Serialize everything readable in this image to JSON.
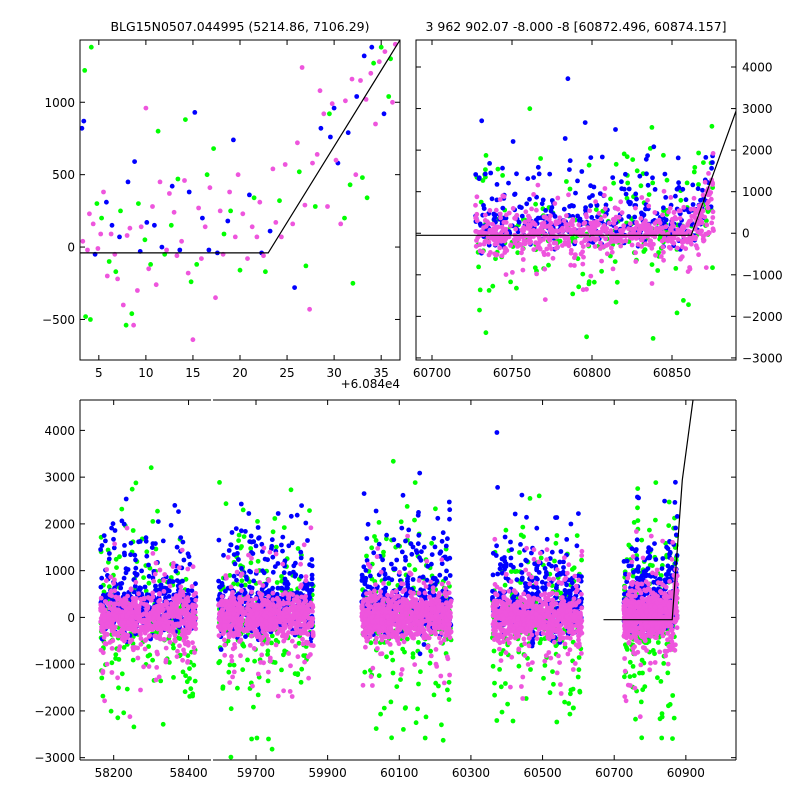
{
  "figure": {
    "background": "#ffffff",
    "point_colors": {
      "green": "#00ff00",
      "blue": "#0000ff",
      "magenta": "#ee55dd"
    },
    "model_line_color": "#000000"
  },
  "chart_data": [
    {
      "id": "top_left",
      "type": "scatter",
      "title": "BLG15N0507.044995 (5214.86, 7106.29)",
      "xlabel": "",
      "ylabel": "",
      "x_offset_label": "+6.084e4",
      "xlim": [
        3,
        37
      ],
      "ylim": [
        -780,
        1430
      ],
      "xticks": [
        5,
        10,
        15,
        20,
        25,
        30,
        35
      ],
      "yticks": [
        -500,
        0,
        500,
        1000
      ],
      "ytick_side": "left",
      "model_line": {
        "x": [
          3,
          23,
          37
        ],
        "y": [
          -40,
          -40,
          1430
        ]
      },
      "series": [
        {
          "color": "green",
          "points": [
            [
              3.5,
              1220
            ],
            [
              4.2,
              1380
            ],
            [
              3.6,
              -480
            ],
            [
              4.1,
              -500
            ],
            [
              4.8,
              300
            ],
            [
              5.3,
              200
            ],
            [
              6.1,
              -100
            ],
            [
              6.8,
              -170
            ],
            [
              7.3,
              250
            ],
            [
              7.9,
              -540
            ],
            [
              8.5,
              -460
            ],
            [
              9.2,
              300
            ],
            [
              9.9,
              50
            ],
            [
              10.5,
              -120
            ],
            [
              11.3,
              800
            ],
            [
              12.0,
              -50
            ],
            [
              12.7,
              150
            ],
            [
              13.4,
              470
            ],
            [
              14.2,
              880
            ],
            [
              14.8,
              -240
            ],
            [
              15.4,
              -120
            ],
            [
              16.5,
              500
            ],
            [
              17.2,
              680
            ],
            [
              18.3,
              90
            ],
            [
              19.0,
              250
            ],
            [
              20.0,
              -160
            ],
            [
              21.5,
              340
            ],
            [
              22.7,
              -170
            ],
            [
              24.2,
              320
            ],
            [
              26.3,
              520
            ],
            [
              27.0,
              -130
            ],
            [
              28.0,
              280
            ],
            [
              29.5,
              920
            ],
            [
              31.1,
              200
            ],
            [
              31.7,
              430
            ],
            [
              33.0,
              480
            ],
            [
              33.5,
              340
            ],
            [
              35.8,
              1040
            ],
            [
              34.2,
              1270
            ],
            [
              35.0,
              1380
            ],
            [
              36.0,
              1300
            ],
            [
              32.0,
              -250
            ]
          ]
        },
        {
          "color": "blue",
          "points": [
            [
              3.2,
              820
            ],
            [
              3.4,
              870
            ],
            [
              4.6,
              -50
            ],
            [
              5.8,
              310
            ],
            [
              6.4,
              150
            ],
            [
              7.2,
              70
            ],
            [
              8.1,
              450
            ],
            [
              8.8,
              590
            ],
            [
              9.4,
              -30
            ],
            [
              10.1,
              170
            ],
            [
              10.9,
              150
            ],
            [
              11.7,
              0
            ],
            [
              12.8,
              420
            ],
            [
              13.6,
              -20
            ],
            [
              14.6,
              380
            ],
            [
              15.2,
              930
            ],
            [
              16.0,
              200
            ],
            [
              16.7,
              -20
            ],
            [
              17.6,
              -40
            ],
            [
              18.7,
              180
            ],
            [
              19.3,
              740
            ],
            [
              21.0,
              360
            ],
            [
              22.3,
              -40
            ],
            [
              23.2,
              110
            ],
            [
              25.8,
              -280
            ],
            [
              28.6,
              820
            ],
            [
              29.6,
              760
            ],
            [
              30.4,
              580
            ],
            [
              31.5,
              790
            ],
            [
              32.4,
              1040
            ],
            [
              33.2,
              1320
            ],
            [
              34.0,
              1380
            ],
            [
              35.3,
              920
            ],
            [
              30.0,
              960
            ]
          ]
        },
        {
          "color": "magenta",
          "points": [
            [
              3.3,
              40
            ],
            [
              3.8,
              -20
            ],
            [
              4.0,
              230
            ],
            [
              4.4,
              160
            ],
            [
              4.9,
              -10
            ],
            [
              5.2,
              90
            ],
            [
              5.5,
              380
            ],
            [
              5.9,
              -200
            ],
            [
              6.3,
              90
            ],
            [
              6.7,
              -50
            ],
            [
              7.0,
              -220
            ],
            [
              7.6,
              -400
            ],
            [
              8.0,
              80
            ],
            [
              8.3,
              130
            ],
            [
              8.7,
              -540
            ],
            [
              9.1,
              -300
            ],
            [
              9.5,
              140
            ],
            [
              10.0,
              960
            ],
            [
              10.3,
              -150
            ],
            [
              10.7,
              280
            ],
            [
              11.1,
              -260
            ],
            [
              11.5,
              450
            ],
            [
              12.2,
              -20
            ],
            [
              12.5,
              370
            ],
            [
              13.0,
              240
            ],
            [
              13.3,
              -60
            ],
            [
              13.8,
              40
            ],
            [
              14.1,
              460
            ],
            [
              14.5,
              -180
            ],
            [
              15.0,
              -640
            ],
            [
              15.6,
              270
            ],
            [
              15.9,
              -80
            ],
            [
              16.3,
              140
            ],
            [
              16.8,
              410
            ],
            [
              17.4,
              -350
            ],
            [
              17.9,
              250
            ],
            [
              18.2,
              -50
            ],
            [
              18.9,
              380
            ],
            [
              19.5,
              70
            ],
            [
              19.8,
              500
            ],
            [
              20.3,
              230
            ],
            [
              20.8,
              -80
            ],
            [
              21.3,
              140
            ],
            [
              21.8,
              70
            ],
            [
              22.1,
              310
            ],
            [
              22.5,
              -60
            ],
            [
              23.5,
              540
            ],
            [
              23.8,
              170
            ],
            [
              24.4,
              70
            ],
            [
              24.8,
              570
            ],
            [
              25.2,
              1440
            ],
            [
              25.6,
              160
            ],
            [
              26.1,
              720
            ],
            [
              26.6,
              1240
            ],
            [
              26.9,
              290
            ],
            [
              27.4,
              -430
            ],
            [
              27.7,
              580
            ],
            [
              28.2,
              640
            ],
            [
              28.5,
              1080
            ],
            [
              28.9,
              920
            ],
            [
              29.3,
              280
            ],
            [
              29.8,
              990
            ],
            [
              30.2,
              600
            ],
            [
              30.7,
              160
            ],
            [
              31.2,
              1010
            ],
            [
              31.9,
              1160
            ],
            [
              32.3,
              500
            ],
            [
              32.8,
              1150
            ],
            [
              33.4,
              1020
            ],
            [
              33.9,
              1200
            ],
            [
              34.4,
              850
            ],
            [
              34.8,
              1280
            ],
            [
              35.4,
              1350
            ],
            [
              36.2,
              1000
            ],
            [
              36.5,
              1400
            ]
          ]
        }
      ]
    },
    {
      "id": "top_right",
      "type": "scatter",
      "title": "3 962 902.07 -8.000 -8 [60872.496, 60874.157]",
      "xlabel": "",
      "ylabel": "",
      "xlim": [
        60690,
        60890
      ],
      "ylim": [
        -3050,
        4650
      ],
      "xticks": [
        60700,
        60750,
        60800,
        60850
      ],
      "yticks": [
        -3000,
        -2000,
        -1000,
        0,
        1000,
        2000,
        3000,
        4000
      ],
      "ytick_side": "right",
      "model_line": {
        "x": [
          60690,
          60862,
          60890
        ],
        "y": [
          -50,
          -50,
          2940
        ]
      },
      "generated_band": {
        "x_range": [
          60727,
          60876
        ],
        "core_sigma": 230,
        "spread_sigma": 900
      }
    },
    {
      "id": "bottom",
      "type": "scatter",
      "title": "",
      "xlabel": "",
      "ylabel": "",
      "xlim": [
        58110,
        61040
      ],
      "ylim": [
        -3050,
        4650
      ],
      "x_break": {
        "skip_from": 58460,
        "skip_to": 59580,
        "break_label": ""
      },
      "xticks": [
        58200,
        58400,
        59700,
        59900,
        60100,
        60300,
        60500,
        60700,
        60900
      ],
      "yticks": [
        -3000,
        -2000,
        -1000,
        0,
        1000,
        2000,
        3000,
        4000
      ],
      "ytick_side": "left",
      "model_line": {
        "x": [
          60670,
          60862,
          60890,
          60920
        ],
        "y": [
          -50,
          -50,
          2940,
          4650
        ]
      },
      "seasons": [
        {
          "x_range": [
            58165,
            58420
          ]
        },
        {
          "x_range": [
            59595,
            59860
          ]
        },
        {
          "x_range": [
            59995,
            60245
          ]
        },
        {
          "x_range": [
            60360,
            60610
          ]
        },
        {
          "x_range": [
            60727,
            60876
          ]
        }
      ]
    }
  ]
}
